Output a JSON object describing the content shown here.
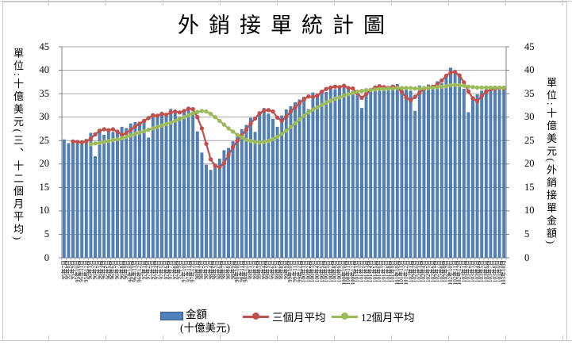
{
  "title": "外銷接單統計圖",
  "axes": {
    "left_title": "單位:十億美元(三、十二個月平均)",
    "right_title": "單位:十億美元(外銷接單金額)",
    "ticks": [
      0,
      5,
      10,
      15,
      20,
      25,
      30,
      35,
      40,
      45
    ],
    "y_min": 0,
    "y_max": 45,
    "y_step": 5
  },
  "legend": {
    "items": [
      {
        "name": "金額",
        "name2": "(十億美元)",
        "type": "bar"
      },
      {
        "name": "三個月平均",
        "type": "line"
      },
      {
        "name": "12個月平均",
        "type": "line"
      }
    ]
  },
  "colors": {
    "bar": "#4f81bd",
    "bar_edge": "#385d8a",
    "line_3mo": "#c0504d",
    "line_12mo": "#9bbb59",
    "grid": "#a6a6a6",
    "axis": "#808080"
  },
  "chart_data": {
    "type": "bar",
    "subtype": "bar+line combo, dual y-axis 0-45, grid on, legend bottom",
    "title": "外銷接單統計圖",
    "ylabel": "單位:十億美元(三、十二個月平均)",
    "ylabel_right": "單位:十億美元(外銷接單金額)",
    "ylim": [
      0,
      45
    ],
    "categories": [
      "95年7月",
      "95年8月",
      "95年9月",
      "95年10月",
      "95年11月",
      "95年12月",
      "96年1月",
      "96年2月",
      "96年3月",
      "96年4月",
      "96年5月",
      "96年6月",
      "96年7月",
      "96年8月",
      "96年9月",
      "96年10月",
      "96年11月",
      "96年12月",
      "97年1月",
      "97年2月",
      "97年3月",
      "97年4月",
      "97年5月",
      "97年6月",
      "97年7月",
      "97年8月",
      "97年9月",
      "97年10月",
      "97年11月",
      "97年12月",
      "98年1月",
      "98年2月",
      "98年3月",
      "98年4月",
      "98年5月",
      "98年6月",
      "98年7月",
      "98年8月",
      "98年9月",
      "98年10月",
      "98年11月",
      "98年12月",
      "99年1月",
      "99年2月",
      "99年3月",
      "99年4月",
      "99年5月",
      "99年6月",
      "99年7月",
      "99年8月",
      "99年9月",
      "99年10月",
      "99年11月",
      "99年12月",
      "100年1月",
      "100年2月",
      "100年3月",
      "100年4月",
      "100年5月",
      "100年6月",
      "100年7月",
      "100年8月",
      "100年9月",
      "100年10月",
      "100年11月",
      "100年12月",
      "101年1月",
      "101年2月",
      "101年3月",
      "101年4月",
      "101年5月",
      "101年6月",
      "101年7月",
      "101年8月",
      "101年9月",
      "101年10月",
      "101年11月",
      "101年12月",
      "102年1月",
      "102年2月",
      "102年3月",
      "102年4月",
      "102年5月",
      "102年6月",
      "102年7月",
      "102年8月",
      "102年9月",
      "102年10月",
      "102年11月",
      "102年12月",
      "103年1月",
      "103年2月",
      "103年3月",
      "103年4月",
      "103年5月",
      "103年6月",
      "103年7月",
      "103年8月",
      "103年9月",
      "103年10月"
    ],
    "series": [
      {
        "name": "金額(十億美元)",
        "type": "bar",
        "values": [
          25.2,
          24.4,
          24.7,
          24.3,
          24.8,
          25.3,
          26.6,
          21.6,
          26.9,
          26.2,
          27.4,
          26.8,
          27.2,
          27.9,
          27.6,
          28.6,
          28.9,
          28.3,
          29.4,
          25.6,
          30.6,
          30.2,
          30.9,
          30.4,
          31.7,
          30.9,
          30.1,
          31.4,
          31.8,
          30.9,
          26.9,
          22.4,
          19.8,
          18.7,
          19.6,
          21.1,
          22.9,
          23.4,
          24.8,
          26.2,
          27.4,
          28.3,
          29.8,
          26.8,
          31.2,
          31.9,
          30.7,
          29.6,
          27.9,
          30.3,
          31.6,
          32.3,
          33.1,
          33.7,
          34.3,
          31.6,
          35.2,
          34.8,
          35.6,
          35.3,
          36.4,
          35.9,
          36.2,
          36.8,
          35.8,
          35.4,
          34.6,
          31.9,
          36.1,
          35.5,
          36.3,
          36.4,
          35.9,
          36.6,
          36.2,
          37.0,
          36.5,
          36.1,
          35.6,
          31.3,
          36.7,
          36.4,
          36.9,
          36.7,
          37.6,
          37.2,
          38.8,
          40.5,
          39.2,
          38.5,
          36.0,
          31.0,
          34.1,
          34.8,
          35.6,
          36.1,
          36.4,
          36.2,
          36.5,
          36.3
        ]
      },
      {
        "name": "三個月平均",
        "type": "line",
        "values": [
          null,
          null,
          24.8,
          24.7,
          24.6,
          24.8,
          25.4,
          26.3,
          27.1,
          27.4,
          27.2,
          27.4,
          26.9,
          26.2,
          26.6,
          27.3,
          28.0,
          28.6,
          29.2,
          29.8,
          30.4,
          30.3,
          30.7,
          30.5,
          31.0,
          31.2,
          31.0,
          31.3,
          31.8,
          31.7,
          30.0,
          27.6,
          24.3,
          21.0,
          19.6,
          19.3,
          20.2,
          21.9,
          23.6,
          24.9,
          26.1,
          27.3,
          28.6,
          29.7,
          30.8,
          31.4,
          31.5,
          31.2,
          29.9,
          29.2,
          30.1,
          31.2,
          32.1,
          33.0,
          33.8,
          34.4,
          34.3,
          34.6,
          35.4,
          36.0,
          36.3,
          36.5,
          36.4,
          36.7,
          36.2,
          36.1,
          35.1,
          34.1,
          34.9,
          35.8,
          36.3,
          36.6,
          36.4,
          36.2,
          36.5,
          36.3,
          35.4,
          34.2,
          33.6,
          34.3,
          35.2,
          36.0,
          36.3,
          36.5,
          36.9,
          37.8,
          38.8,
          39.5,
          39.6,
          38.9,
          37.4,
          35.5,
          34.0,
          33.4,
          34.5,
          35.4,
          35.9,
          36.1,
          36.2,
          36.2
        ]
      },
      {
        "name": "12個月平均",
        "type": "line",
        "values": [
          null,
          null,
          null,
          null,
          null,
          null,
          24.2,
          24.4,
          24.5,
          24.7,
          24.9,
          25.1,
          25.3,
          25.5,
          25.8,
          26.1,
          26.4,
          26.7,
          27.0,
          27.3,
          27.6,
          27.9,
          28.2,
          28.5,
          28.8,
          29.2,
          29.6,
          30.0,
          30.4,
          30.8,
          31.1,
          31.3,
          31.2,
          30.7,
          30.0,
          29.2,
          28.4,
          27.6,
          26.9,
          26.2,
          25.7,
          25.2,
          24.9,
          24.7,
          24.6,
          24.7,
          24.9,
          25.3,
          25.8,
          26.4,
          27.1,
          27.9,
          28.7,
          29.5,
          30.3,
          31.0,
          31.6,
          32.1,
          32.6,
          33.1,
          33.5,
          33.9,
          34.2,
          34.6,
          34.9,
          35.2,
          35.4,
          35.6,
          35.7,
          35.8,
          35.9,
          36.0,
          36.0,
          36.1,
          36.1,
          36.2,
          36.2,
          36.2,
          36.2,
          36.1,
          36.1,
          36.2,
          36.2,
          36.3,
          36.4,
          36.5,
          36.6,
          36.8,
          36.9,
          36.8,
          36.7,
          36.5,
          36.4,
          36.3,
          36.3,
          36.3,
          36.3,
          36.3,
          36.3,
          36.3
        ]
      }
    ]
  }
}
